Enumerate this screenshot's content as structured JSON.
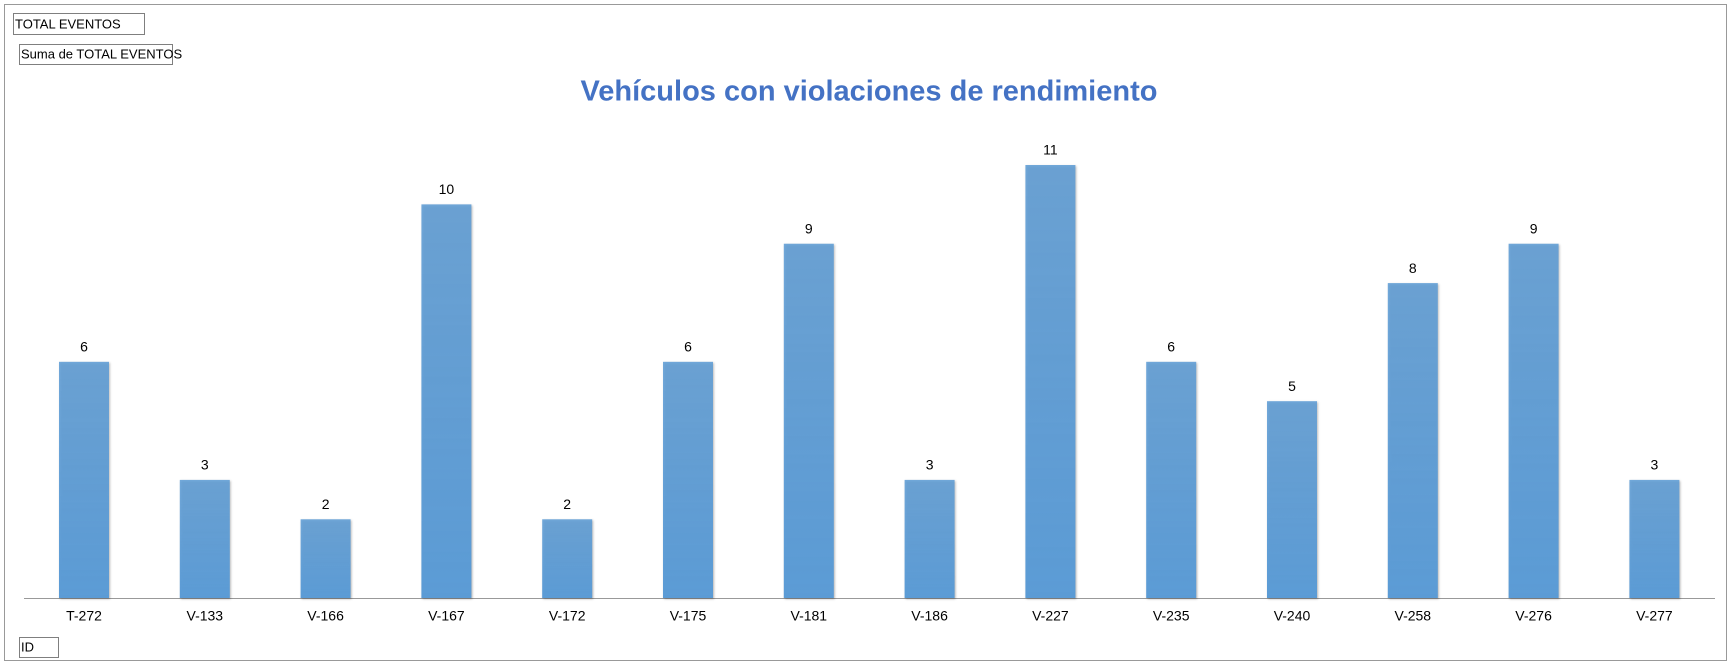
{
  "chart_data": {
    "type": "bar",
    "title": "Vehículos con violaciones de rendimiento",
    "field_buttons": {
      "filter": "TOTAL EVENTOS",
      "values": "Suma de TOTAL EVENTOS",
      "axis": "ID"
    },
    "categories": [
      "T-272",
      "V-133",
      "V-166",
      "V-167",
      "V-172",
      "V-175",
      "V-181",
      "V-186",
      "V-227",
      "V-235",
      "V-240",
      "V-258",
      "V-276",
      "V-277"
    ],
    "values": [
      6,
      3,
      2,
      10,
      2,
      6,
      9,
      3,
      11,
      6,
      5,
      8,
      9,
      3
    ],
    "color": "#5b9bd5"
  }
}
